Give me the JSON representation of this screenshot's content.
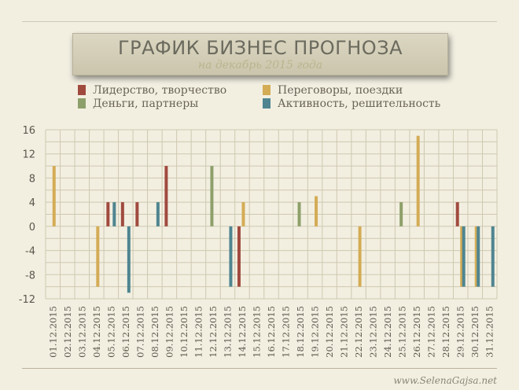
{
  "header": {
    "title": "ГРАФИК БИЗНЕС ПРОГНОЗА",
    "subtitle": "на декабрь 2015 года"
  },
  "legend": [
    {
      "label": "Лидерство, творчество",
      "color": "#a04a3e"
    },
    {
      "label": "Деньги, партнеры",
      "color": "#8ea06a"
    },
    {
      "label": "Переговоры, поездки",
      "color": "#d4ac55"
    },
    {
      "label": "Активность, решительность",
      "color": "#4f8590"
    }
  ],
  "footer": {
    "credit": "www.SelenaGajsa.net"
  },
  "chart_data": {
    "type": "bar",
    "title": "ГРАФИК БИЗНЕС ПРОГНОЗА",
    "subtitle": "на декабрь 2015 года",
    "xlabel": "",
    "ylabel": "",
    "ylim": [
      -12,
      16
    ],
    "yticks": [
      16,
      12,
      8,
      4,
      0,
      -4,
      -8,
      -12
    ],
    "grid": true,
    "legend_position": "top",
    "categories": [
      "01.12.2015",
      "02.12.2015",
      "03.12.2015",
      "04.12.2015",
      "05.12.2015",
      "06.12.2015",
      "07.12.2015",
      "08.12.2015",
      "09.12.2015",
      "10.12.2015",
      "11.12.2015",
      "12.12.2015",
      "13.12.2015",
      "14.12.2015",
      "15.12.2015",
      "16.12.2015",
      "17.12.2015",
      "18.12.2015",
      "19.12.2015",
      "20.12.2015",
      "21.12.2015",
      "22.12.2015",
      "23.12.2015",
      "24.12.2015",
      "25.12.2015",
      "26.12.2015",
      "27.12.2015",
      "28.12.2015",
      "29.12.2015",
      "30.12.2015",
      "31.12.2015"
    ],
    "series": [
      {
        "name": "Лидерство, творчество",
        "color": "#a04a3e",
        "values": [
          0,
          0,
          0,
          0,
          4,
          4,
          4,
          0,
          10,
          0,
          0,
          0,
          0,
          -10,
          0,
          0,
          0,
          0,
          0,
          0,
          0,
          0,
          0,
          0,
          0,
          0,
          0,
          0,
          4,
          0,
          0
        ]
      },
      {
        "name": "Деньги, партнеры",
        "color": "#8ea06a",
        "values": [
          0,
          0,
          0,
          0,
          0,
          0,
          0,
          0,
          0,
          0,
          0,
          10,
          0,
          0,
          0,
          0,
          0,
          4,
          0,
          0,
          0,
          0,
          0,
          0,
          4,
          0,
          0,
          0,
          0,
          0,
          0
        ]
      },
      {
        "name": "Переговоры, поездки",
        "color": "#d4ac55",
        "values": [
          10,
          0,
          0,
          -10,
          0,
          0,
          0,
          0,
          0,
          0,
          0,
          0,
          0,
          4,
          0,
          0,
          0,
          0,
          5,
          0,
          0,
          -10,
          0,
          0,
          0,
          15,
          0,
          0,
          -10,
          -10,
          0
        ]
      },
      {
        "name": "Активность, решительность",
        "color": "#4f8590",
        "values": [
          0,
          0,
          0,
          0,
          4,
          -11,
          0,
          4,
          0,
          0,
          0,
          0,
          -10,
          0,
          0,
          0,
          0,
          0,
          0,
          0,
          0,
          0,
          0,
          0,
          0,
          0,
          0,
          0,
          -10,
          -10,
          -10
        ]
      }
    ]
  }
}
